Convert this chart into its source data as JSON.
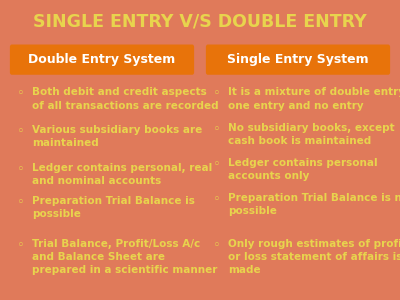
{
  "title": "SINGLE ENTRY V/S DOUBLE ENTRY",
  "title_bg": "#5d6572",
  "title_color": "#e8d44d",
  "title_fontsize": 12.5,
  "outer_bg": "#e07a5a",
  "panel_bg": "#5d6572",
  "header_bg": "#e8730a",
  "header_color": "#ffffff",
  "bullet_color": "#e8d44d",
  "bullet_char": "◦",
  "left_header": "Double Entry System",
  "right_header": "Single Entry System",
  "left_bullets": [
    "Both debit and credit aspects\nof all transactions are recorded",
    "Various subsidiary books are\nmaintained",
    "Ledger contains personal, real\nand nominal accounts",
    "Preparation Trial Balance is\npossible",
    "Trial Balance, Profit/Loss A/c\nand Balance Sheet are\nprepared in a scientific manner"
  ],
  "right_bullets": [
    "It is a mixture of double entry,\none entry and no entry",
    "No subsidiary books, except\ncash book is maintained",
    "Ledger contains personal\naccounts only",
    "Preparation Trial Balance is not\npossible",
    "Only rough estimates of profit\nor loss statement of affairs is\nmade"
  ],
  "header_fontsize": 9,
  "bullet_fontsize": 7.5
}
